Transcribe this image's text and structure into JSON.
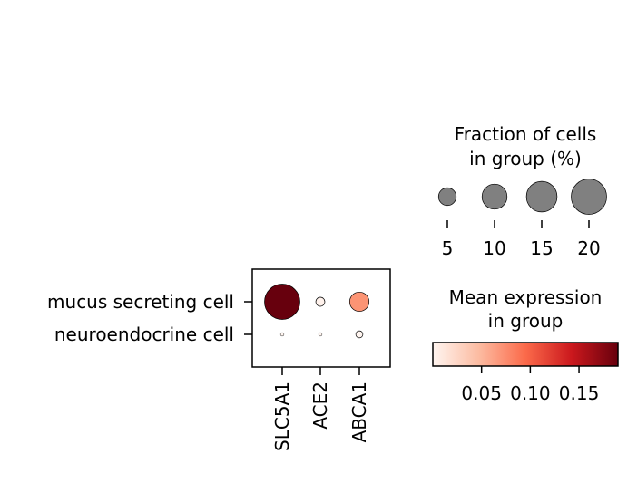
{
  "chart_data": {
    "type": "dotplot",
    "rows": [
      "mucus secreting cell",
      "neuroendocrine cell"
    ],
    "columns": [
      "SLC5A1",
      "ACE2",
      "ABCA1"
    ],
    "fraction_pct": [
      [
        20,
        1.3,
        6
      ],
      [
        0.2,
        0.2,
        0.8
      ]
    ],
    "mean_expression": [
      [
        0.19,
        0.003,
        0.07
      ],
      [
        0.0,
        0.0,
        0.0
      ]
    ],
    "size_legend": {
      "title_line1": "Fraction of cells",
      "title_line2": "in group (%)",
      "values": [
        5,
        10,
        15,
        20
      ],
      "tick_labels": [
        "5",
        "10",
        "15",
        "20"
      ]
    },
    "color_legend": {
      "title_line1": "Mean expression",
      "title_line2": "in group",
      "range": [
        0.0,
        0.19
      ],
      "ticks": [
        0.05,
        0.1,
        0.15
      ],
      "tick_labels": [
        "0.05",
        "0.10",
        "0.15"
      ],
      "colormap": "Reds"
    }
  }
}
